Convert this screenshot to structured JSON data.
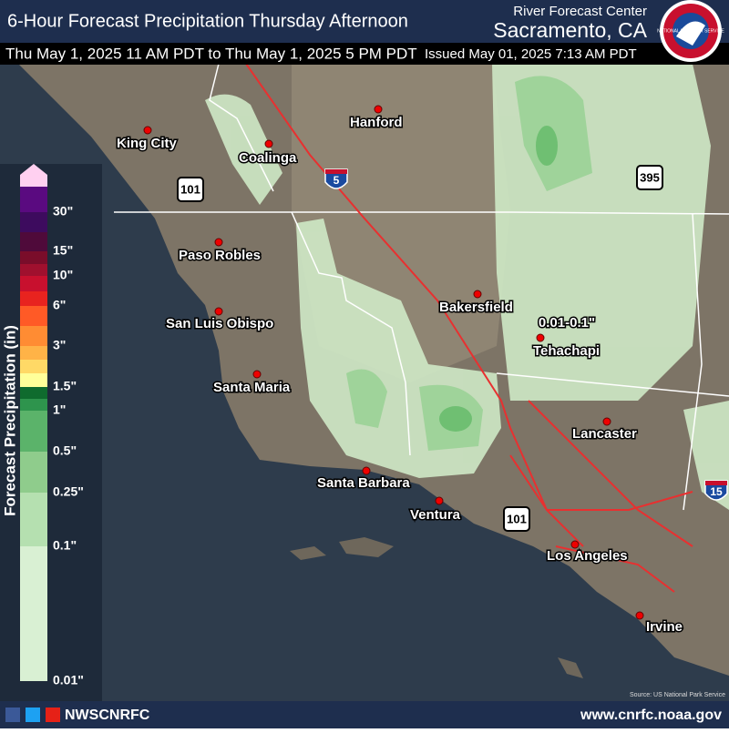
{
  "header": {
    "title": "6-Hour Forecast Precipitation Thursday Afternoon",
    "period": "Thu May 1, 2025 11 AM PDT to Thu May 1, 2025 5 PM PDT",
    "issued": "Issued May 01, 2025 7:13 AM PDT",
    "center": "River Forecast Center",
    "location": "Sacramento, CA",
    "logo_text": "NATIONAL WEATHER SERVICE"
  },
  "legend": {
    "label": "Forecast Precipitation (in)",
    "ticks": [
      "0.01\"",
      "0.1\"",
      "0.25\"",
      "0.5\"",
      "1\"",
      "1.5\"",
      "3\"",
      "6\"",
      "10\"",
      "15\"",
      "30\""
    ],
    "colors": [
      "#d9f0d3",
      "#b5e0b0",
      "#8fcc8c",
      "#5bb36a",
      "#2e944d",
      "#0f6b2e",
      "#ffff99",
      "#ffd966",
      "#ffb347",
      "#ff8c33",
      "#ff5a26",
      "#e8231f",
      "#c8102e",
      "#a0102e",
      "#7a0d2a",
      "#4f0a3a",
      "#3d0b5e",
      "#5a0a80",
      "#ffd0f0"
    ]
  },
  "map": {
    "cities": [
      "King City",
      "Coalinga",
      "Hanford",
      "Paso Robles",
      "San Luis Obispo",
      "Santa Maria",
      "Santa Barbara",
      "Ventura",
      "Bakersfield",
      "Tehachapi",
      "Lancaster",
      "Los Angeles",
      "Irvine"
    ],
    "annotation": "0.01-0.1\"",
    "shields": [
      "101",
      "5",
      "395",
      "101",
      "15"
    ],
    "source": "Source: US National Park Service"
  },
  "footer": {
    "social": "NWSCNRFC",
    "url": "www.cnrfc.noaa.gov"
  }
}
